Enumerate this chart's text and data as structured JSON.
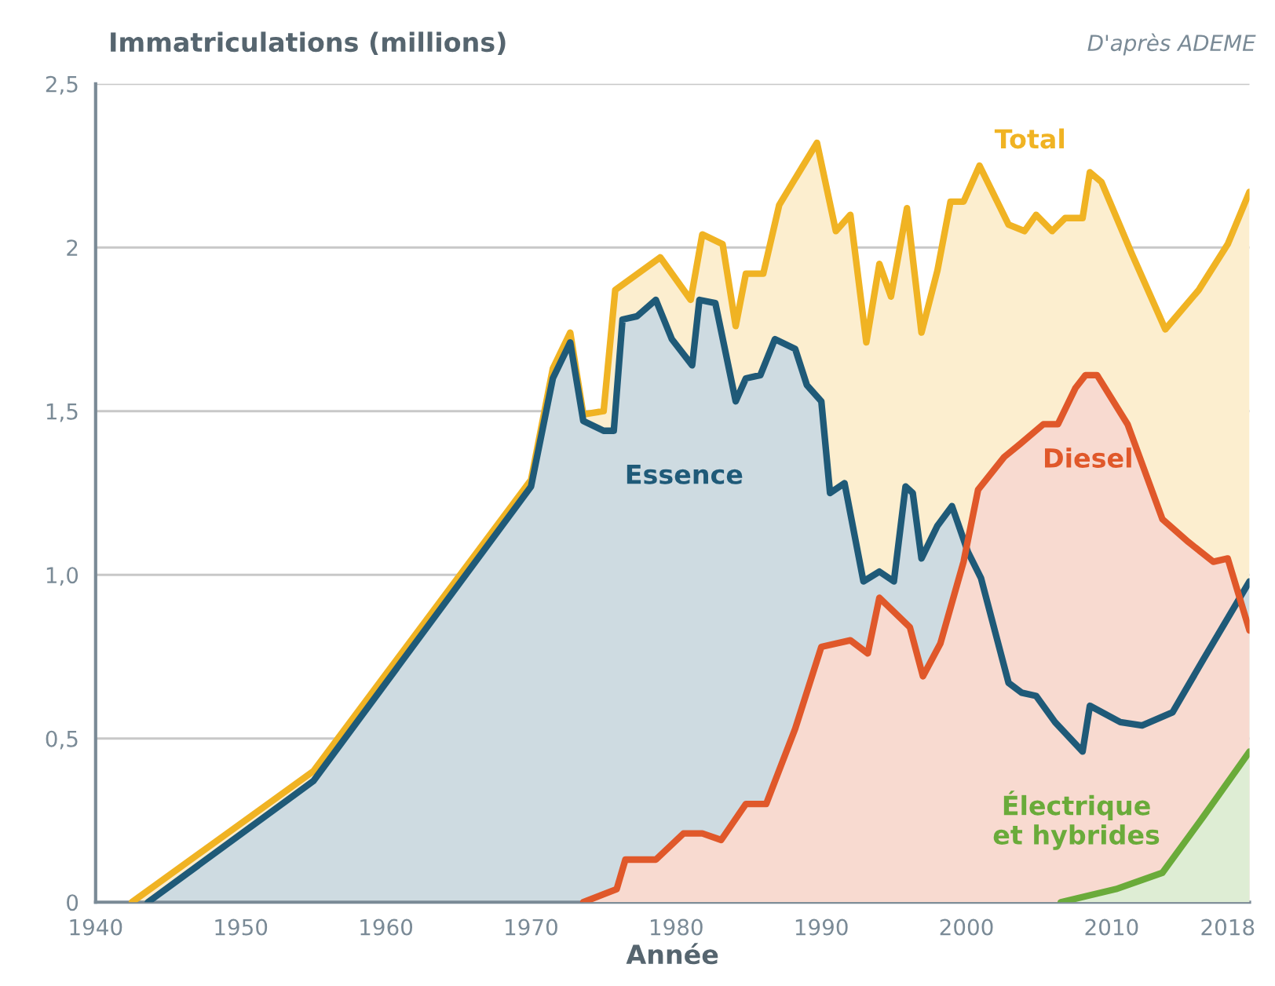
{
  "chart_data": {
    "type": "area",
    "ylabel": "Immatriculations (millions)",
    "xlabel": "Année",
    "annotations": [
      "D'après ADEME"
    ],
    "xlim": [
      1940,
      2019.5
    ],
    "xticks": [
      1940,
      1950,
      1960,
      1970,
      1980,
      1990,
      2000,
      2010,
      2018
    ],
    "ylim": [
      0,
      2.5
    ],
    "yticks": [
      {
        "value": 0,
        "label": "0"
      },
      {
        "value": 0.5,
        "label": "0,5"
      },
      {
        "value": 1.0,
        "label": "1,0"
      },
      {
        "value": 1.5,
        "label": "1,5"
      },
      {
        "value": 2,
        "label": "2"
      },
      {
        "value": 2.5,
        "label": "2,5"
      }
    ],
    "grid": "y",
    "legend": false,
    "series": [
      {
        "name": "Total",
        "color": "#f0b323",
        "x": [
          1942.5,
          1955,
          1970,
          1971.5,
          1972.7,
          1973.6,
          1975,
          1975.8,
          1978.9,
          1981,
          1981.8,
          1983.2,
          1984.1,
          1984.8,
          1986,
          1987.1,
          1989.7,
          1991,
          1992,
          1993.1,
          1994,
          1994.8,
          1995.9,
          1996.9,
          1998,
          1998.9,
          1999.8,
          2000.9,
          2002.9,
          2004,
          2004.8,
          2005.9,
          2006.8,
          2008,
          2008.5,
          2009.3,
          2011.4,
          2013.7,
          2016,
          2018,
          2019.5
        ],
        "values": [
          0,
          0.4,
          1.29,
          1.63,
          1.74,
          1.49,
          1.5,
          1.87,
          1.97,
          1.84,
          2.04,
          2.01,
          1.76,
          1.92,
          1.92,
          2.13,
          2.32,
          2.05,
          2.1,
          1.71,
          1.95,
          1.85,
          2.12,
          1.74,
          1.93,
          2.14,
          2.14,
          2.25,
          2.07,
          2.05,
          2.1,
          2.05,
          2.09,
          2.09,
          2.23,
          2.2,
          1.98,
          1.75,
          1.87,
          2.01,
          2.17
        ]
      },
      {
        "name": "Essence",
        "color": "#1f5a78",
        "x": [
          1943.6,
          1955,
          1970,
          1971.5,
          1972.7,
          1973.6,
          1975,
          1975.7,
          1976.3,
          1977.3,
          1978.6,
          1979.7,
          1981.1,
          1981.6,
          1982.7,
          1984.1,
          1984.8,
          1985.8,
          1986.8,
          1988.2,
          1989,
          1990,
          1990.6,
          1991.6,
          1992.9,
          1994,
          1995,
          1995.8,
          1996.3,
          1996.9,
          1998,
          1999,
          2000.1,
          2001,
          2002.9,
          2003.8,
          2004.8,
          2006.1,
          2008,
          2008.5,
          2010.6,
          2012.1,
          2014.2,
          2016.3,
          2019.5
        ],
        "values": [
          0,
          0.37,
          1.27,
          1.6,
          1.71,
          1.47,
          1.44,
          1.44,
          1.78,
          1.79,
          1.84,
          1.72,
          1.64,
          1.84,
          1.83,
          1.53,
          1.6,
          1.61,
          1.72,
          1.69,
          1.58,
          1.53,
          1.25,
          1.28,
          0.98,
          1.01,
          0.98,
          1.27,
          1.25,
          1.05,
          1.15,
          1.21,
          1.07,
          0.99,
          0.67,
          0.64,
          0.63,
          0.55,
          0.46,
          0.6,
          0.55,
          0.54,
          0.58,
          0.74,
          0.98
        ]
      },
      {
        "name": "Diesel",
        "color": "#e0582a",
        "x": [
          1973.6,
          1975.9,
          1976.5,
          1978.6,
          1980.5,
          1981.8,
          1983.1,
          1984.8,
          1986.2,
          1988.2,
          1990,
          1992,
          1993.2,
          1994,
          1996.1,
          1997,
          1998.2,
          1999.8,
          2000.8,
          2002.6,
          2003.7,
          2005.3,
          2006.3,
          2007.5,
          2008.2,
          2009,
          2011.1,
          2013.5,
          2015.3,
          2017,
          2018,
          2019.5
        ],
        "values": [
          0,
          0.04,
          0.13,
          0.13,
          0.21,
          0.21,
          0.19,
          0.3,
          0.3,
          0.53,
          0.78,
          0.8,
          0.76,
          0.93,
          0.84,
          0.69,
          0.79,
          1.04,
          1.26,
          1.36,
          1.4,
          1.46,
          1.46,
          1.57,
          1.61,
          1.61,
          1.46,
          1.17,
          1.1,
          1.04,
          1.05,
          0.83
        ]
      },
      {
        "name": "Électrique\net hybrides",
        "color": "#6aab3a",
        "x": [
          2006.5,
          2010.3,
          2013.5,
          2016.3,
          2019.5
        ],
        "values": [
          0,
          0.04,
          0.09,
          0.26,
          0.46
        ]
      }
    ]
  }
}
